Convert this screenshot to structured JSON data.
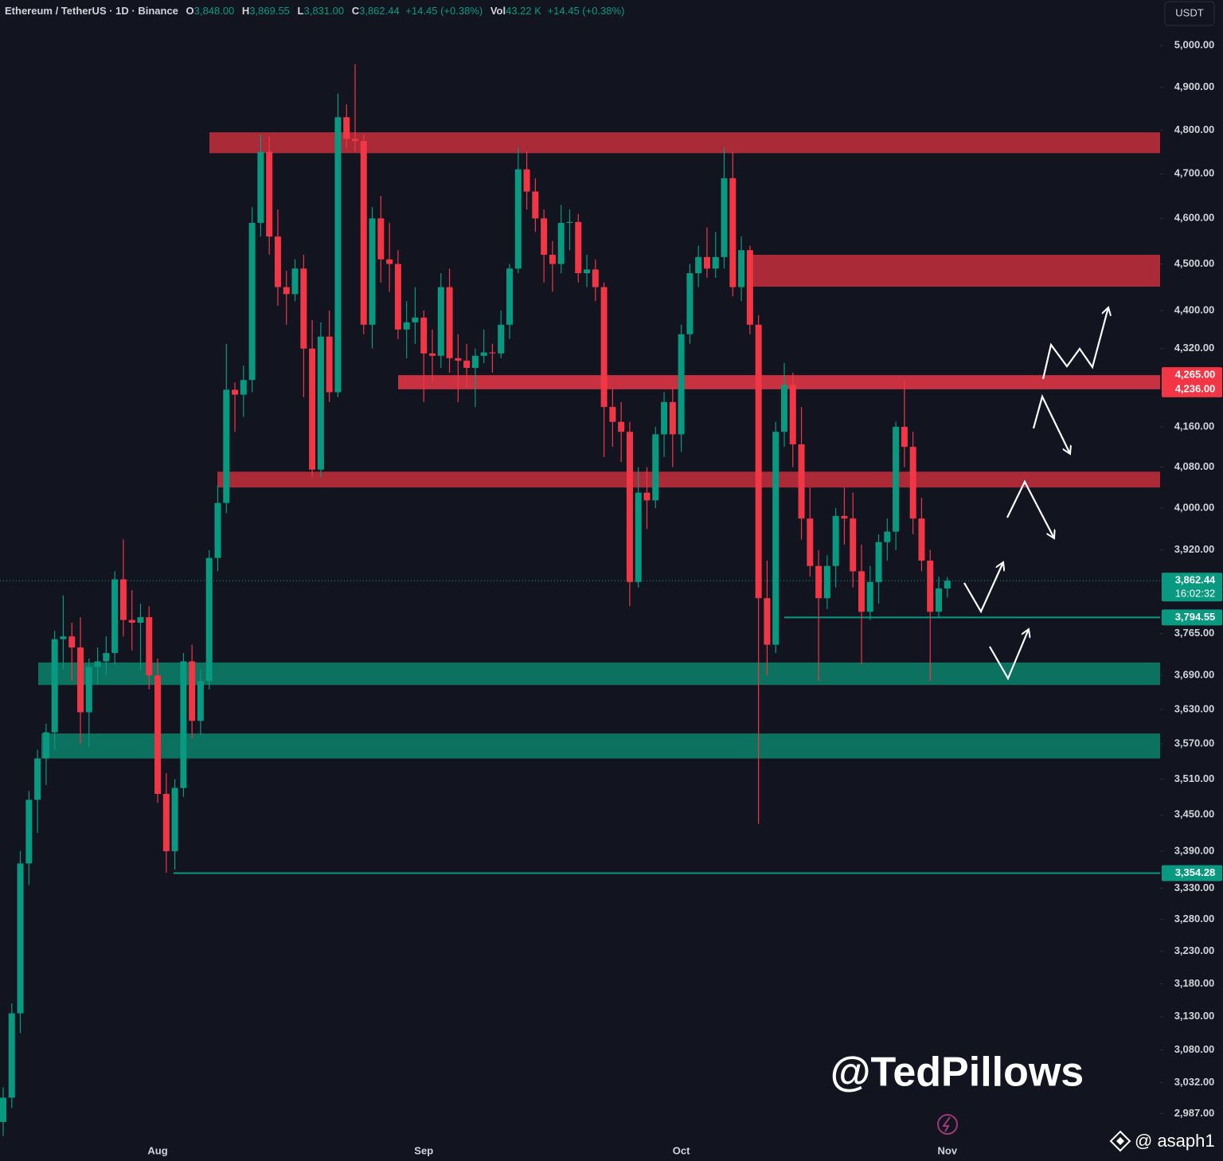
{
  "header": {
    "symbol": "Ethereum / TetherUS · 1D · Binance",
    "o_label": "O",
    "o": "3,848.00",
    "h_label": "H",
    "h": "3,869.55",
    "l_label": "L",
    "l": "3,831.00",
    "c_label": "C",
    "c": "3,862.44",
    "change": "+14.45 (+0.38%)",
    "vol_label": "Vol",
    "vol": "43.22 K",
    "vol_change": "+14.45 (+0.38%)"
  },
  "currency": "USDT",
  "watermark": "@TedPillows",
  "credit": "@ asaph1",
  "chart_data": {
    "type": "candlestick",
    "log_scale": true,
    "up_color": "#089981",
    "down_color": "#f23645",
    "categories": [
      null,
      null,
      null,
      null,
      null,
      null,
      null,
      null,
      null,
      null,
      null,
      null,
      null,
      null,
      null,
      null,
      null,
      null,
      "Aug",
      null,
      null,
      null,
      null,
      null,
      null,
      null,
      null,
      null,
      null,
      null,
      null,
      null,
      null,
      null,
      null,
      null,
      null,
      null,
      null,
      null,
      null,
      null,
      null,
      null,
      null,
      null,
      null,
      null,
      null,
      "Sep",
      null,
      null,
      null,
      null,
      null,
      null,
      null,
      null,
      null,
      null,
      null,
      null,
      null,
      null,
      null,
      null,
      null,
      null,
      null,
      null,
      null,
      null,
      null,
      null,
      null,
      null,
      null,
      null,
      null,
      "Oct",
      null,
      null,
      null,
      null,
      null,
      null,
      null,
      null,
      null,
      null,
      null,
      null,
      null,
      null,
      null,
      null,
      null,
      null,
      null,
      null,
      null,
      null,
      null,
      null,
      null,
      null,
      null,
      null,
      null,
      null,
      "Nov"
    ],
    "ohlc": {
      "open": [
        2975,
        3010,
        3135,
        3370,
        3475,
        3545,
        3590,
        3755,
        3760,
        3740,
        3625,
        3705,
        3715,
        3730,
        3865,
        3790,
        3785,
        3795,
        3690,
        3485,
        3390,
        3495,
        3715,
        3610,
        3680,
        3905,
        4010,
        4235,
        4225,
        4255,
        4590,
        4750,
        4560,
        4450,
        4435,
        4490,
        4320,
        4075,
        4345,
        4230,
        4830,
        4780,
        4775,
        4370,
        4600,
        4510,
        4500,
        4360,
        4375,
        4385,
        4310,
        4305,
        4450,
        4300,
        4295,
        4280,
        4305,
        4312,
        4310,
        4370,
        4490,
        4710,
        4660,
        4600,
        4520,
        4500,
        4590,
        4592,
        4480,
        4488,
        4450,
        4200,
        4170,
        4150,
        3860,
        4030,
        4015,
        4145,
        4210,
        4145,
        4350,
        4480,
        4515,
        4490,
        4515,
        4690,
        4450,
        4530,
        4370,
        3830,
        3745,
        4150,
        4245,
        4125,
        3980,
        3890,
        3830,
        3890,
        3985,
        3980,
        3880,
        3805,
        3860,
        3935,
        3955,
        4160,
        4120,
        3980,
        3900,
        3805,
        3848
      ],
      "high": [
        3025,
        3150,
        3390,
        3490,
        3560,
        3605,
        3770,
        3835,
        3785,
        3795,
        3720,
        3740,
        3760,
        3880,
        3940,
        3845,
        3820,
        3815,
        3720,
        3520,
        3510,
        3730,
        3745,
        3700,
        3920,
        4045,
        4330,
        4250,
        4285,
        4625,
        4790,
        4785,
        4620,
        4485,
        4510,
        4520,
        4380,
        4375,
        4400,
        4885,
        4860,
        4955,
        4790,
        4625,
        4650,
        4590,
        4530,
        4420,
        4450,
        4400,
        4360,
        4480,
        4490,
        4350,
        4330,
        4320,
        4360,
        4330,
        4400,
        4500,
        4760,
        4750,
        4690,
        4620,
        4550,
        4630,
        4620,
        4610,
        4520,
        4510,
        4460,
        4240,
        4210,
        4170,
        4080,
        4080,
        4160,
        4230,
        4240,
        4370,
        4500,
        4540,
        4580,
        4570,
        4760,
        4750,
        4560,
        4540,
        4390,
        3900,
        4170,
        4290,
        4270,
        4200,
        4040,
        3920,
        3910,
        4000,
        4040,
        4030,
        3930,
        3890,
        3950,
        3980,
        4170,
        4255,
        4150,
        4020,
        3920,
        3870,
        3869.55
      ],
      "low": [
        2955,
        2995,
        3105,
        3335,
        3420,
        3500,
        3560,
        3700,
        3680,
        3570,
        3565,
        3675,
        3690,
        3710,
        3760,
        3735,
        3700,
        3665,
        3470,
        3355,
        3360,
        3480,
        3580,
        3585,
        3665,
        3880,
        3990,
        4150,
        4180,
        4230,
        4560,
        4520,
        4410,
        4370,
        4420,
        4220,
        4060,
        4060,
        4210,
        4220,
        4760,
        4750,
        4350,
        4320,
        4460,
        4440,
        4340,
        4300,
        4330,
        4210,
        4250,
        4280,
        4270,
        4210,
        4240,
        4200,
        4290,
        4270,
        4300,
        4340,
        4480,
        4620,
        4570,
        4460,
        4440,
        4480,
        4530,
        4460,
        4450,
        4420,
        4100,
        4120,
        4090,
        3815,
        3850,
        3960,
        4000,
        4100,
        4080,
        4110,
        4330,
        4450,
        4470,
        4470,
        4490,
        4430,
        4420,
        4350,
        3435,
        3690,
        3730,
        4120,
        4080,
        3940,
        3870,
        3680,
        3810,
        3850,
        3930,
        3850,
        3710,
        3790,
        3820,
        3900,
        3920,
        4080,
        3950,
        3880,
        3680,
        3795,
        3831
      ],
      "close": [
        3010,
        3135,
        3370,
        3475,
        3545,
        3590,
        3755,
        3760,
        3740,
        3625,
        3705,
        3715,
        3730,
        3865,
        3790,
        3785,
        3795,
        3690,
        3485,
        3390,
        3495,
        3715,
        3610,
        3680,
        3905,
        4010,
        4235,
        4225,
        4255,
        4590,
        4750,
        4560,
        4450,
        4435,
        4490,
        4320,
        4075,
        4345,
        4230,
        4830,
        4780,
        4775,
        4370,
        4600,
        4510,
        4500,
        4360,
        4375,
        4385,
        4310,
        4305,
        4450,
        4300,
        4295,
        4280,
        4305,
        4312,
        4310,
        4370,
        4490,
        4710,
        4660,
        4600,
        4520,
        4500,
        4590,
        4592,
        4480,
        4488,
        4450,
        4200,
        4170,
        4150,
        3860,
        4030,
        4015,
        4145,
        4210,
        4145,
        4350,
        4480,
        4515,
        4490,
        4515,
        4690,
        4450,
        4530,
        4370,
        3830,
        3745,
        4150,
        4245,
        4125,
        3980,
        3890,
        3830,
        3890,
        3985,
        3980,
        3880,
        3805,
        3860,
        3935,
        3955,
        4160,
        4120,
        3980,
        3900,
        3805,
        3848,
        3862.44
      ]
    },
    "ylim": [
      2951,
      5111
    ],
    "yticks": [
      {
        "value": 5000,
        "label": "5,000.00"
      },
      {
        "value": 4900,
        "label": "4,900.00"
      },
      {
        "value": 4800,
        "label": "4,800.00"
      },
      {
        "value": 4700,
        "label": "4,700.00"
      },
      {
        "value": 4600,
        "label": "4,600.00"
      },
      {
        "value": 4500,
        "label": "4,500.00"
      },
      {
        "value": 4400,
        "label": "4,400.00"
      },
      {
        "value": 4320,
        "label": "4,320.00"
      },
      {
        "value": 4160,
        "label": "4,160.00"
      },
      {
        "value": 4080,
        "label": "4,080.00"
      },
      {
        "value": 4000,
        "label": "4,000.00"
      },
      {
        "value": 3920,
        "label": "3,920.00"
      },
      {
        "value": 3765,
        "label": "3,765.00"
      },
      {
        "value": 3690,
        "label": "3,690.00"
      },
      {
        "value": 3630,
        "label": "3,630.00"
      },
      {
        "value": 3570,
        "label": "3,570.00"
      },
      {
        "value": 3510,
        "label": "3,510.00"
      },
      {
        "value": 3450,
        "label": "3,450.00"
      },
      {
        "value": 3390,
        "label": "3,390.00"
      },
      {
        "value": 3330,
        "label": "3,330.00"
      },
      {
        "value": 3280,
        "label": "3,280.00"
      },
      {
        "value": 3230,
        "label": "3,230.00"
      },
      {
        "value": 3180,
        "label": "3,180.00"
      },
      {
        "value": 3130,
        "label": "3,130.00"
      },
      {
        "value": 3080,
        "label": "3,080.00"
      },
      {
        "value": 3032,
        "label": "3,032.00"
      },
      {
        "value": 2987,
        "label": "2,987.00"
      }
    ],
    "zones": [
      {
        "low": 4747,
        "high": 4795,
        "color": "#b92c3b"
      },
      {
        "low": 4451,
        "high": 4520,
        "color": "#b92c3b"
      },
      {
        "low": 4236,
        "high": 4265,
        "color": "#d83443"
      },
      {
        "low": 4040,
        "high": 4071,
        "color": "#b92c3b"
      },
      {
        "low": 3673,
        "high": 3713,
        "color": "#0c7a64"
      },
      {
        "low": 3545,
        "high": 3588,
        "color": "#0c7a64"
      }
    ],
    "levels": [
      {
        "value": 3794.55,
        "label": "3,794.55",
        "color": "#089981"
      },
      {
        "value": 3354.28,
        "label": "3,354.28",
        "color": "#089981"
      }
    ],
    "price_tags": [
      {
        "value": 4265,
        "label": "4,265.00",
        "color": "#f23645"
      },
      {
        "value": 4236,
        "label": "4,236.00",
        "color": "#f23645"
      }
    ],
    "last_price_label": "3,862.44",
    "countdown": "16:02:32"
  }
}
